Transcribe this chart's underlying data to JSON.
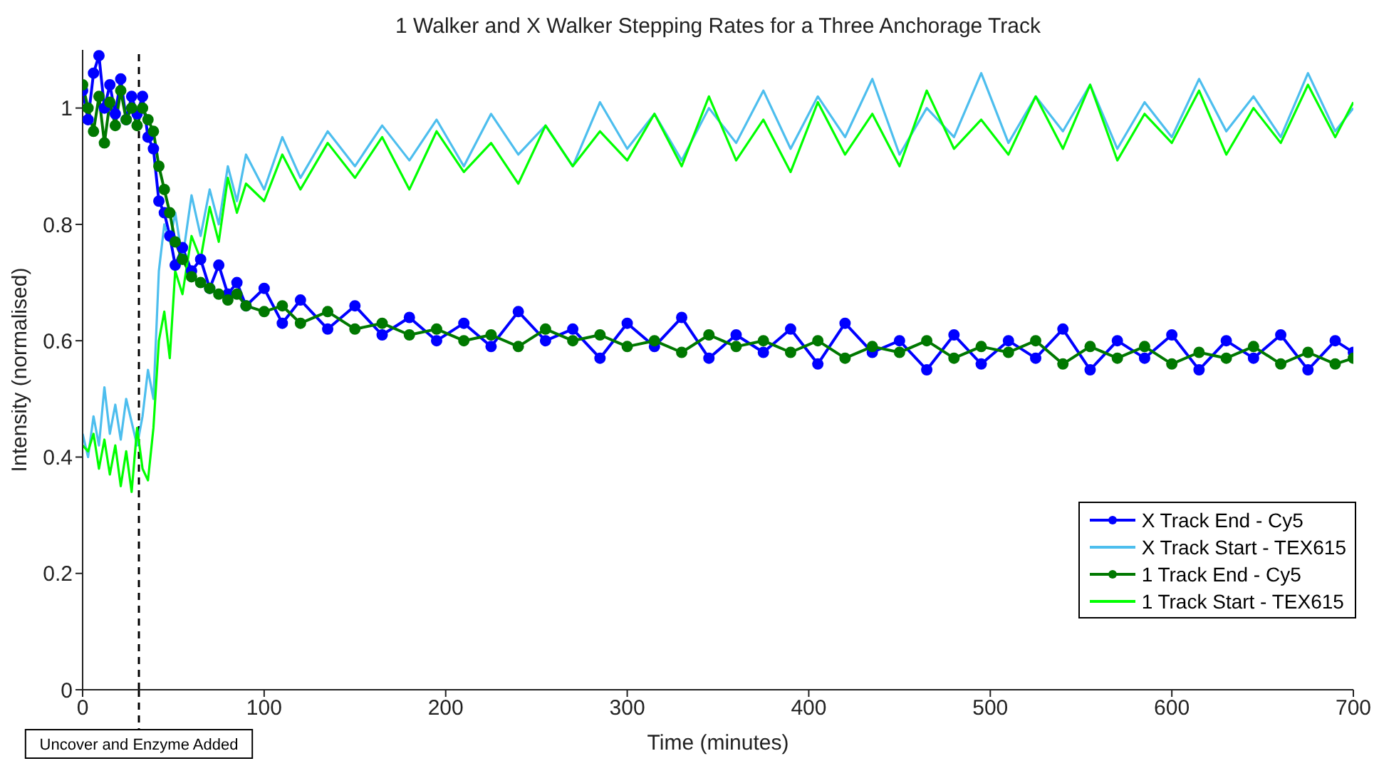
{
  "chart_data": {
    "type": "line",
    "title": "1 Walker and X Walker Stepping Rates for a Three Anchorage Track",
    "xlabel": "Time (minutes)",
    "ylabel": "Intensity (normalised)",
    "x": [
      0,
      3,
      6,
      9,
      12,
      15,
      18,
      21,
      24,
      27,
      30,
      33,
      36,
      39,
      42,
      45,
      48,
      51,
      55,
      60,
      65,
      70,
      75,
      80,
      85,
      90,
      100,
      110,
      120,
      135,
      150,
      165,
      180,
      195,
      210,
      225,
      240,
      255,
      270,
      285,
      300,
      315,
      330,
      345,
      360,
      375,
      390,
      405,
      420,
      435,
      450,
      465,
      480,
      495,
      510,
      525,
      540,
      555,
      570,
      585,
      600,
      615,
      630,
      645,
      660,
      675,
      690,
      700
    ],
    "series": [
      {
        "name": "X Track End - Cy5",
        "color": "#0000ff",
        "marker": "circle",
        "values": [
          1.03,
          0.98,
          1.06,
          1.09,
          1.0,
          1.04,
          0.99,
          1.05,
          0.98,
          1.02,
          0.99,
          1.02,
          0.95,
          0.93,
          0.84,
          0.82,
          0.78,
          0.73,
          0.76,
          0.72,
          0.74,
          0.69,
          0.73,
          0.68,
          0.7,
          0.66,
          0.69,
          0.63,
          0.67,
          0.62,
          0.66,
          0.61,
          0.64,
          0.6,
          0.63,
          0.59,
          0.65,
          0.6,
          0.62,
          0.57,
          0.63,
          0.59,
          0.64,
          0.57,
          0.61,
          0.58,
          0.62,
          0.56,
          0.63,
          0.58,
          0.6,
          0.55,
          0.61,
          0.56,
          0.6,
          0.57,
          0.62,
          0.55,
          0.6,
          0.57,
          0.61,
          0.55,
          0.6,
          0.57,
          0.61,
          0.55,
          0.6,
          0.58
        ]
      },
      {
        "name": "X Track Start - TEX615",
        "color": "#4dbeee",
        "marker": "none",
        "values": [
          0.44,
          0.4,
          0.47,
          0.42,
          0.52,
          0.44,
          0.49,
          0.43,
          0.5,
          0.46,
          0.42,
          0.47,
          0.55,
          0.5,
          0.72,
          0.8,
          0.77,
          0.82,
          0.74,
          0.85,
          0.78,
          0.86,
          0.8,
          0.9,
          0.84,
          0.92,
          0.86,
          0.95,
          0.88,
          0.96,
          0.9,
          0.97,
          0.91,
          0.98,
          0.9,
          0.99,
          0.92,
          0.97,
          0.9,
          1.01,
          0.93,
          0.99,
          0.91,
          1.0,
          0.94,
          1.03,
          0.93,
          1.02,
          0.95,
          1.05,
          0.92,
          1.0,
          0.95,
          1.06,
          0.94,
          1.02,
          0.96,
          1.04,
          0.93,
          1.01,
          0.95,
          1.05,
          0.96,
          1.02,
          0.95,
          1.06,
          0.96,
          1.0
        ]
      },
      {
        "name": "1 Track End - Cy5",
        "color": "#007800",
        "marker": "circle",
        "values": [
          1.04,
          1.0,
          0.96,
          1.02,
          0.94,
          1.01,
          0.97,
          1.03,
          0.98,
          1.0,
          0.97,
          1.0,
          0.98,
          0.96,
          0.9,
          0.86,
          0.82,
          0.77,
          0.74,
          0.71,
          0.7,
          0.69,
          0.68,
          0.67,
          0.68,
          0.66,
          0.65,
          0.66,
          0.63,
          0.65,
          0.62,
          0.63,
          0.61,
          0.62,
          0.6,
          0.61,
          0.59,
          0.62,
          0.6,
          0.61,
          0.59,
          0.6,
          0.58,
          0.61,
          0.59,
          0.6,
          0.58,
          0.6,
          0.57,
          0.59,
          0.58,
          0.6,
          0.57,
          0.59,
          0.58,
          0.6,
          0.56,
          0.59,
          0.57,
          0.59,
          0.56,
          0.58,
          0.57,
          0.59,
          0.56,
          0.58,
          0.56,
          0.57
        ]
      },
      {
        "name": "1 Track Start - TEX615",
        "color": "#00ff00",
        "marker": "none",
        "values": [
          0.42,
          0.41,
          0.44,
          0.38,
          0.43,
          0.37,
          0.42,
          0.35,
          0.41,
          0.34,
          0.45,
          0.38,
          0.36,
          0.45,
          0.6,
          0.65,
          0.57,
          0.72,
          0.68,
          0.78,
          0.74,
          0.83,
          0.77,
          0.88,
          0.82,
          0.87,
          0.84,
          0.92,
          0.86,
          0.94,
          0.88,
          0.95,
          0.86,
          0.96,
          0.89,
          0.94,
          0.87,
          0.97,
          0.9,
          0.96,
          0.91,
          0.99,
          0.9,
          1.02,
          0.91,
          0.98,
          0.89,
          1.01,
          0.92,
          0.99,
          0.9,
          1.03,
          0.93,
          0.98,
          0.92,
          1.02,
          0.93,
          1.04,
          0.91,
          0.99,
          0.94,
          1.03,
          0.92,
          1.0,
          0.94,
          1.04,
          0.95,
          1.01
        ]
      }
    ],
    "xlim": [
      0,
      700
    ],
    "xticks": [
      0,
      100,
      200,
      300,
      400,
      500,
      600,
      700
    ],
    "ylim": [
      0,
      1.1
    ],
    "yticks": [
      0,
      0.2,
      0.4,
      0.6,
      0.8,
      1
    ],
    "ref_lines": [
      {
        "axis": "x",
        "value": 31,
        "label": "Uncover and Enzyme Added",
        "color": "#000000",
        "line_style": "dashed"
      }
    ],
    "legend": "bottom right"
  }
}
